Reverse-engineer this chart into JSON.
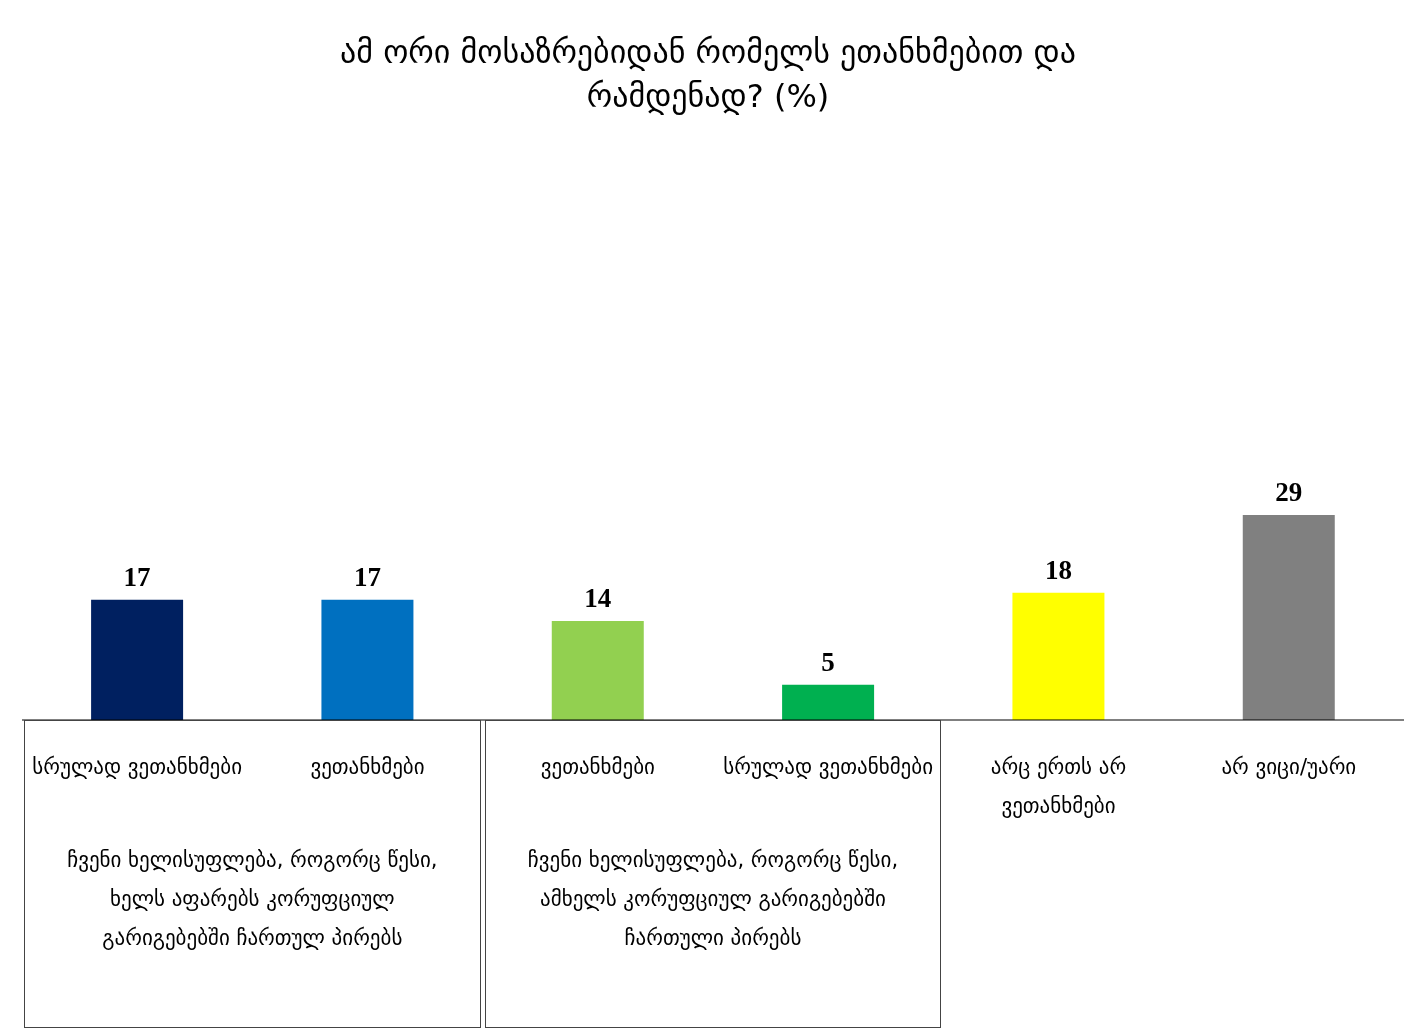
{
  "chart_data": {
    "type": "bar",
    "title": "ამ ორი მოსაზრებიდან რომელს ეთანხმებით და რამდენად? (%)",
    "categories": [
      "სრულად ვეთანხმები",
      "ვეთანხმები",
      "ვეთანხმები",
      "სრულად ვეთანხმები",
      "არც ერთს არ ვეთანხმები",
      "არ ვიცი/უარი"
    ],
    "values": [
      17,
      17,
      14,
      5,
      18,
      29
    ],
    "colors": [
      "#002060",
      "#0070c0",
      "#92d050",
      "#00b050",
      "#ffff00",
      "#808080"
    ],
    "data_labels": true,
    "legend": false,
    "grid": false,
    "annotations": [
      "ჩვენი ხელისუფლება, როგორც წესი, ხელს აფარებს კორუფციულ გარიგებებში ჩართულ პირებს",
      "ჩვენი ხელისუფლება, როგორც წესი, ამხელს კორუფციულ გარიგებებში ჩართული პირებს"
    ]
  }
}
